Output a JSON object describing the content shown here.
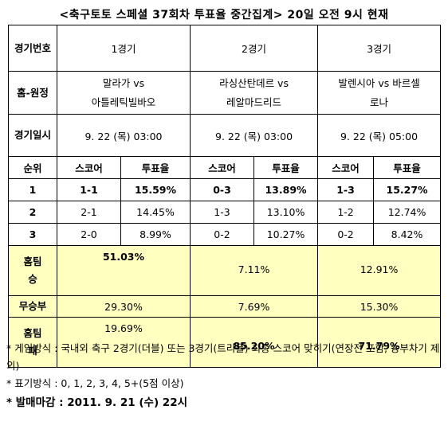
{
  "title": "<축구토토 스페셜 37회차 투표율 중간집계> 20일 오전 9시 현재",
  "header": {
    "game_no_label": "경기번호",
    "games": [
      "1경기",
      "2경기",
      "3경기"
    ]
  },
  "teams": {
    "label": "홈-원정",
    "g1": [
      "말라가 vs",
      "아틀레틱빌바오"
    ],
    "g2": [
      "라싱산탄데르 vs",
      "레알마드리드"
    ],
    "g3": [
      "발렌시아 vs 바르셀",
      "로나"
    ]
  },
  "date": {
    "label": "경기일시",
    "g1": "9. 22 (목) 03:00",
    "g2": "9. 22 (목) 03:00",
    "g3": "9. 22 (목) 05:00"
  },
  "rank": {
    "label": "순위",
    "score_label": "스코어",
    "rate_label": "투표율",
    "rows": [
      {
        "rank": "1",
        "g1_score": "1-1",
        "g1_rate": "15.59%",
        "g2_score": "0-3",
        "g2_rate": "13.89%",
        "g3_score": "1-3",
        "g3_rate": "15.27%"
      },
      {
        "rank": "2",
        "g1_score": "2-1",
        "g1_rate": "14.45%",
        "g2_score": "1-3",
        "g2_rate": "13.10%",
        "g3_score": "1-2",
        "g3_rate": "12.74%"
      },
      {
        "rank": "3",
        "g1_score": "2-0",
        "g1_rate": "8.99%",
        "g2_score": "0-2",
        "g2_rate": "10.27%",
        "g3_score": "0-2",
        "g3_rate": "8.42%"
      }
    ]
  },
  "outcome": {
    "home_win_label": [
      "홈팀",
      "승"
    ],
    "draw_label": "무승부",
    "home_loss_label": [
      "홈팀",
      "패"
    ],
    "home_win": {
      "g1": "51.03%",
      "g2": "7.11%",
      "g3": "12.91%"
    },
    "draw": {
      "g1": "29.30%",
      "g2": "7.69%",
      "g3": "15.30%"
    },
    "home_loss": {
      "g1": "19.69%",
      "g2": "85.20%",
      "g3": "71.79%"
    }
  },
  "notes": {
    "method": "* 게임방식 : 국내외 축구 2경기(더블) 또는 3경기(트리플) 최종 스코어 맞히기(연장전 포함, 승부차기 제외)",
    "marking": "* 표기방식 : 0, 1, 2, 3, 4, 5+(5점 이상)",
    "deadline": "* 발매마감 : 2011. 9. 21 (수) 22시"
  }
}
